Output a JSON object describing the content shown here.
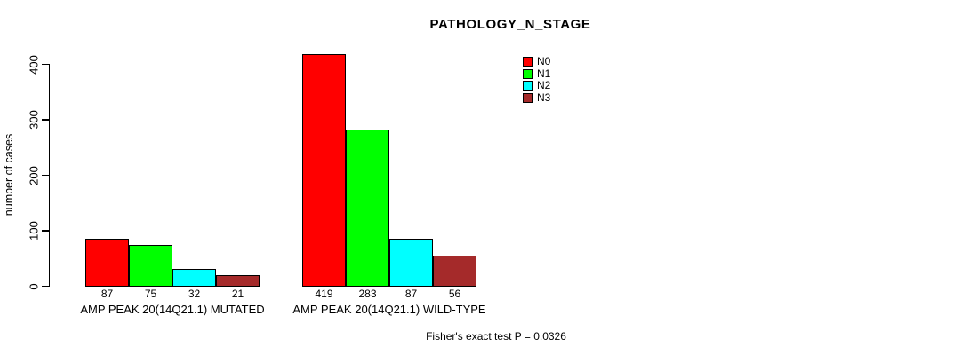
{
  "title": "PATHOLOGY_N_STAGE",
  "footer": "Fisher's exact test P = 0.0326",
  "chart_data": {
    "type": "bar",
    "title": "PATHOLOGY_N_STAGE",
    "xlabel": "",
    "ylabel": "number of cases",
    "ylim": [
      0,
      400
    ],
    "yticks": [
      0,
      100,
      200,
      300,
      400
    ],
    "grid": false,
    "legend_position": "top-right",
    "background": "#ffffff",
    "series": [
      {
        "name": "N0",
        "color": "#FF0000"
      },
      {
        "name": "N1",
        "color": "#00FF00"
      },
      {
        "name": "N2",
        "color": "#00FFFF"
      },
      {
        "name": "N3",
        "color": "#A52A2A"
      }
    ],
    "categories": [
      "AMP PEAK 20(14Q21.1) MUTATED",
      "AMP PEAK 20(14Q21.1) WILD-TYPE"
    ],
    "groups": [
      {
        "label": "AMP PEAK 20(14Q21.1) MUTATED",
        "values": [
          87,
          75,
          32,
          21
        ]
      },
      {
        "label": "AMP PEAK 20(14Q21.1) WILD-TYPE",
        "values": [
          419,
          283,
          87,
          56
        ]
      }
    ],
    "annotation": "Fisher's exact test P = 0.0326"
  }
}
